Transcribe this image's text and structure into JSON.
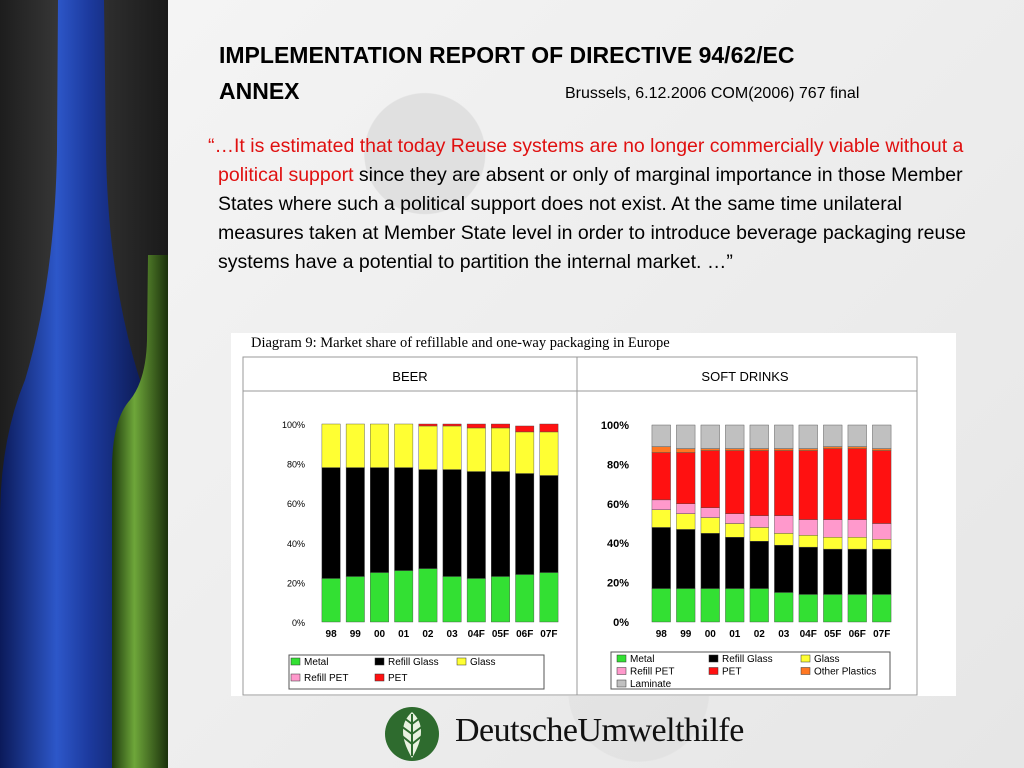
{
  "slide": {
    "title_line1": "IMPLEMENTATION REPORT OF DIRECTIVE 94/62/EC",
    "title_line2": "ANNEX",
    "subtitle": "Brussels, 6.12.2006 COM(2006) 767 final",
    "quote_red": "“…It is estimated that today Reuse systems are no longer commercially viable without a political support",
    "quote_black": " since they are absent or only of marginal importance in those Member States where such a political support does not exist. At the same time unilateral measures taken at Member State level in order to introduce beverage packaging reuse systems have a potential to partition the internal market. …”",
    "logo_text": "DeutscheUmwelthilfe"
  },
  "figure": {
    "caption": "Diagram 9: Market share of refillable and one-way packaging in Europe",
    "panels": [
      "BEER",
      "SOFT DRINKS"
    ]
  },
  "chart_data": [
    {
      "type": "bar",
      "stacked": true,
      "title": "BEER",
      "categories": [
        "98",
        "99",
        "00",
        "01",
        "02",
        "03",
        "04F",
        "05F",
        "06F",
        "07F"
      ],
      "ylim": [
        0,
        100
      ],
      "yticks": [
        "0%",
        "20%",
        "40%",
        "60%",
        "80%",
        "100%"
      ],
      "series": [
        {
          "name": "Metal",
          "color": "#33e033",
          "values": [
            22,
            23,
            25,
            26,
            27,
            23,
            22,
            23,
            24,
            25
          ]
        },
        {
          "name": "Refill Glass",
          "color": "#000000",
          "values": [
            56,
            55,
            53,
            52,
            50,
            54,
            54,
            53,
            51,
            49
          ]
        },
        {
          "name": "Glass",
          "color": "#ffff33",
          "values": [
            22,
            22,
            22,
            22,
            22,
            22,
            22,
            22,
            21,
            22
          ]
        },
        {
          "name": "Refill PET",
          "color": "#ff99cc",
          "values": [
            0,
            0,
            0,
            0,
            0,
            0,
            0,
            0,
            0,
            0
          ]
        },
        {
          "name": "PET",
          "color": "#ff1111",
          "values": [
            0,
            0,
            0,
            0,
            1,
            1,
            2,
            2,
            3,
            4
          ]
        }
      ],
      "legend": "bottom"
    },
    {
      "type": "bar",
      "stacked": true,
      "title": "SOFT DRINKS",
      "categories": [
        "98",
        "99",
        "00",
        "01",
        "02",
        "03",
        "04F",
        "05F",
        "06F",
        "07F"
      ],
      "ylim": [
        0,
        100
      ],
      "yticks": [
        "0%",
        "20%",
        "40%",
        "60%",
        "80%",
        "100%"
      ],
      "series": [
        {
          "name": "Metal",
          "color": "#33e033",
          "values": [
            17,
            17,
            17,
            17,
            17,
            15,
            14,
            14,
            14,
            14
          ]
        },
        {
          "name": "Refill Glass",
          "color": "#000000",
          "values": [
            31,
            30,
            28,
            26,
            24,
            24,
            24,
            23,
            23,
            23
          ]
        },
        {
          "name": "Glass",
          "color": "#ffff33",
          "values": [
            9,
            8,
            8,
            7,
            7,
            6,
            6,
            6,
            6,
            5
          ]
        },
        {
          "name": "Refill PET",
          "color": "#ff99cc",
          "values": [
            5,
            5,
            5,
            5,
            6,
            9,
            8,
            9,
            9,
            8
          ]
        },
        {
          "name": "PET",
          "color": "#ff1111",
          "values": [
            24,
            26,
            29,
            32,
            33,
            33,
            35,
            36,
            36,
            37
          ]
        },
        {
          "name": "Other Plastics",
          "color": "#ff7722",
          "values": [
            3,
            2,
            1,
            1,
            1,
            1,
            1,
            1,
            1,
            1
          ]
        },
        {
          "name": "Laminate",
          "color": "#c0c0c0",
          "values": [
            11,
            12,
            12,
            12,
            12,
            12,
            12,
            11,
            11,
            12
          ]
        }
      ],
      "legend": "bottom"
    }
  ]
}
